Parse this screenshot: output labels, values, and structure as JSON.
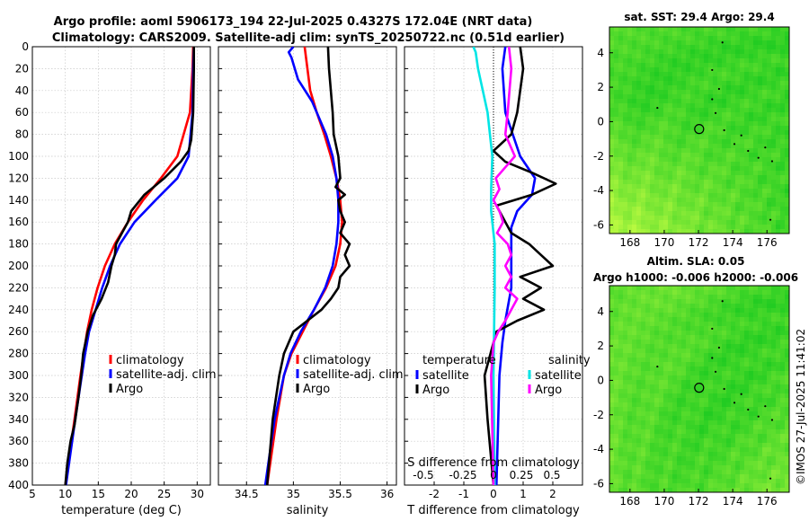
{
  "titles": {
    "line1": "Argo profile: aoml 5906173_194 22-Jul-2025 0.4327S 172.04E (NRT data)",
    "line2": "Climatology: CARS2009. Satellite-adj clim: synTS_20250722.nc (0.51d earlier)",
    "sst_map": "sat. SST: 29.4 Argo: 29.4",
    "sla_line1": "Altim. SLA: 0.05",
    "sla_line2": "Argo h1000: -0.006 h2000: -0.006",
    "credit": "©IMOS 27-Jul-2025 11:41:02"
  },
  "colors": {
    "climatology": "#ff0000",
    "satellite": "#0000ff",
    "argo": "#000000",
    "s_satellite": "#00e5e5",
    "s_argo": "#ff00ff",
    "map_green": "#22cc22",
    "map_yellow": "#ccff44"
  },
  "chart_data": [
    {
      "type": "line",
      "panel": "temperature",
      "xlabel": "temperature (deg C)",
      "xlim": [
        5,
        32
      ],
      "xticks": [
        "5",
        "10",
        "15",
        "20",
        "25",
        "30"
      ],
      "ylim": [
        0,
        400
      ],
      "yticks": [
        "0",
        "20",
        "40",
        "60",
        "80",
        "100",
        "120",
        "140",
        "160",
        "180",
        "200",
        "220",
        "240",
        "260",
        "280",
        "300",
        "320",
        "340",
        "360",
        "380",
        "400"
      ],
      "legend": [
        "climatology",
        "satellite-adj. clim",
        "Argo"
      ],
      "series": [
        {
          "name": "climatology",
          "depth": [
            0,
            20,
            60,
            100,
            120,
            140,
            160,
            180,
            200,
            220,
            240,
            260,
            280,
            300,
            340,
            400
          ],
          "values": [
            29.4,
            29.3,
            28.9,
            27.0,
            24.5,
            21.8,
            19.5,
            17.5,
            16.0,
            14.9,
            14.0,
            13.3,
            12.8,
            12.3,
            11.4,
            10.0
          ]
        },
        {
          "name": "satellite-adj. clim",
          "depth": [
            0,
            20,
            60,
            100,
            120,
            140,
            160,
            180,
            200,
            220,
            240,
            260,
            280,
            300,
            340,
            400
          ],
          "values": [
            29.5,
            29.4,
            29.3,
            28.7,
            27.0,
            23.7,
            20.5,
            18.3,
            16.8,
            15.6,
            14.6,
            13.6,
            13.0,
            12.5,
            11.5,
            10.1
          ]
        },
        {
          "name": "Argo",
          "depth": [
            0,
            20,
            60,
            85,
            95,
            105,
            120,
            135,
            150,
            160,
            170,
            180,
            190,
            200,
            215,
            230,
            245,
            260,
            280,
            300,
            320,
            345,
            360,
            380,
            400
          ],
          "values": [
            29.5,
            29.5,
            29.4,
            29.1,
            28.7,
            27.5,
            25.0,
            22.0,
            20.0,
            19.5,
            18.6,
            17.7,
            17.5,
            17.0,
            16.5,
            15.5,
            14.2,
            13.4,
            12.7,
            12.4,
            12.0,
            11.4,
            10.8,
            10.3,
            10.0
          ]
        }
      ]
    },
    {
      "type": "line",
      "panel": "salinity",
      "xlabel": "salinity",
      "xlim": [
        34.2,
        36.1
      ],
      "xticks": [
        "34.5",
        "35",
        "35.5",
        "36"
      ],
      "ylim": [
        0,
        400
      ],
      "legend": [
        "climatology",
        "satellite-adj. clim",
        "Argo"
      ],
      "series": [
        {
          "name": "climatology",
          "depth": [
            0,
            20,
            40,
            60,
            80,
            100,
            120,
            140,
            160,
            180,
            200,
            220,
            240,
            260,
            280,
            300,
            340,
            400
          ],
          "values": [
            35.12,
            35.15,
            35.18,
            35.25,
            35.33,
            35.4,
            35.46,
            35.5,
            35.52,
            35.5,
            35.45,
            35.35,
            35.22,
            35.1,
            34.98,
            34.9,
            34.82,
            34.72
          ]
        },
        {
          "name": "satellite-adj. clim",
          "depth": [
            0,
            5,
            10,
            30,
            50,
            80,
            100,
            120,
            140,
            160,
            180,
            200,
            220,
            240,
            260,
            280,
            300,
            340,
            400
          ],
          "values": [
            35.0,
            34.95,
            34.98,
            35.05,
            35.2,
            35.35,
            35.42,
            35.46,
            35.48,
            35.48,
            35.46,
            35.42,
            35.34,
            35.22,
            35.08,
            34.97,
            34.9,
            34.8,
            34.7
          ]
        },
        {
          "name": "Argo",
          "depth": [
            0,
            20,
            60,
            80,
            100,
            120,
            128,
            135,
            140,
            150,
            160,
            170,
            180,
            190,
            200,
            210,
            220,
            230,
            240,
            250,
            260,
            280,
            300,
            340,
            400
          ],
          "values": [
            35.37,
            35.38,
            35.42,
            35.43,
            35.48,
            35.5,
            35.45,
            35.55,
            35.48,
            35.5,
            35.55,
            35.5,
            35.6,
            35.55,
            35.6,
            35.5,
            35.48,
            35.4,
            35.3,
            35.15,
            35.0,
            34.9,
            34.85,
            34.78,
            34.72
          ]
        }
      ]
    },
    {
      "type": "line",
      "panel": "difference",
      "xlabel": "T difference from climatology",
      "xlim": [
        -3,
        3
      ],
      "xticks": [
        "-2",
        "-1",
        "0",
        "1",
        "2"
      ],
      "top_axis_label": "S difference from climatology",
      "top_ticks": [
        "-0.5",
        "-0.25",
        "0",
        "0.25",
        "0.5"
      ],
      "ylim": [
        0,
        400
      ],
      "legend_temperature": {
        "heading": "temperature",
        "items": [
          "satellite",
          "Argo"
        ]
      },
      "legend_salinity": {
        "heading": "salinity",
        "items": [
          "satellite",
          "Argo"
        ]
      },
      "series": [
        {
          "name": "T satellite",
          "depth": [
            0,
            20,
            60,
            100,
            120,
            135,
            150,
            165,
            180,
            200,
            220,
            250,
            270,
            300,
            400
          ],
          "values": [
            0.4,
            0.3,
            0.4,
            0.9,
            1.4,
            1.3,
            0.8,
            0.6,
            0.6,
            0.6,
            0.6,
            0.4,
            0.3,
            0.2,
            0.1
          ]
        },
        {
          "name": "T Argo",
          "depth": [
            0,
            20,
            60,
            80,
            95,
            105,
            115,
            125,
            135,
            145,
            155,
            170,
            180,
            190,
            200,
            210,
            220,
            230,
            240,
            250,
            260,
            270,
            300,
            340,
            400
          ],
          "values": [
            0.9,
            1.0,
            0.8,
            0.6,
            0.0,
            0.4,
            1.3,
            2.1,
            1.3,
            0.1,
            0.3,
            0.6,
            1.2,
            1.6,
            2.0,
            0.9,
            1.6,
            1.0,
            1.7,
            0.8,
            0.1,
            0.0,
            -0.3,
            -0.2,
            0.0
          ]
        },
        {
          "name": "S satellite",
          "depth": [
            0,
            5,
            20,
            60,
            100,
            130,
            150,
            180,
            220,
            300,
            400
          ],
          "values": [
            -0.17,
            -0.15,
            -0.13,
            -0.05,
            -0.01,
            -0.02,
            -0.02,
            0.01,
            0.01,
            0.0,
            0.01
          ]
        },
        {
          "name": "S Argo",
          "depth": [
            0,
            20,
            60,
            80,
            100,
            110,
            120,
            130,
            140,
            150,
            160,
            170,
            180,
            190,
            200,
            210,
            220,
            230,
            240,
            250,
            260,
            270,
            300,
            400
          ],
          "values": [
            0.13,
            0.15,
            0.12,
            0.1,
            0.18,
            0.1,
            0.02,
            0.05,
            0.0,
            0.05,
            0.08,
            0.03,
            0.12,
            0.15,
            0.1,
            0.15,
            0.1,
            0.2,
            0.15,
            0.1,
            0.04,
            0.0,
            -0.02,
            0.0
          ]
        }
      ]
    },
    {
      "type": "heatmap",
      "panel": "sst_map",
      "xticks": [
        "168",
        "170",
        "172",
        "174",
        "176"
      ],
      "yticks": [
        "4",
        "2",
        "0",
        "-2",
        "-4",
        "-6"
      ],
      "xlim": [
        166.8,
        177.3
      ],
      "ylim": [
        -6.5,
        5.5
      ],
      "argo_position": {
        "lon": 172.04,
        "lat": -0.43
      }
    },
    {
      "type": "heatmap",
      "panel": "sla_map",
      "xticks": [
        "168",
        "170",
        "172",
        "174",
        "176"
      ],
      "yticks": [
        "4",
        "2",
        "0",
        "-2",
        "-4",
        "-6"
      ],
      "xlim": [
        166.8,
        177.3
      ],
      "ylim": [
        -6.5,
        5.5
      ],
      "argo_position": {
        "lon": 172.04,
        "lat": -0.43
      }
    }
  ]
}
